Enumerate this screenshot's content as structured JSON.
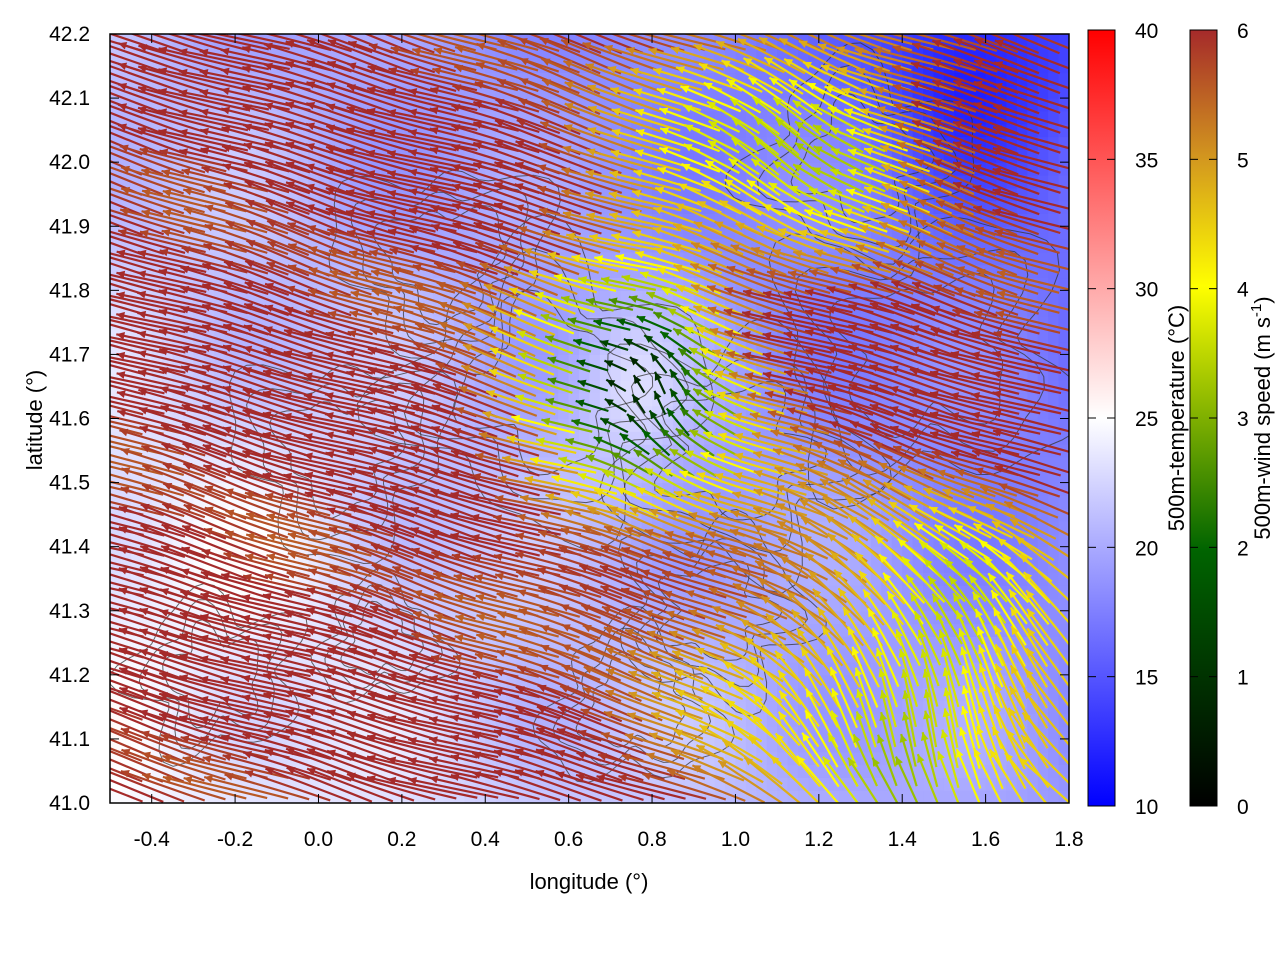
{
  "chart_data": {
    "type": "vector-field",
    "xlabel": "longitude (°)",
    "ylabel": "latitude (°)",
    "xlim": [
      -0.5,
      1.8
    ],
    "ylim": [
      41.0,
      42.2
    ],
    "x_ticks": [
      "-0.4",
      "-0.2",
      "0.0",
      "0.2",
      "0.4",
      "0.6",
      "0.8",
      "1.0",
      "1.2",
      "1.4",
      "1.6",
      "1.8"
    ],
    "x_tick_values": [
      -0.4,
      -0.2,
      0.0,
      0.2,
      0.4,
      0.6,
      0.8,
      1.0,
      1.2,
      1.4,
      1.6,
      1.8
    ],
    "y_ticks": [
      "41.0",
      "41.1",
      "41.2",
      "41.3",
      "41.4",
      "41.5",
      "41.6",
      "41.7",
      "41.8",
      "41.9",
      "42.0",
      "42.1",
      "42.2"
    ],
    "y_tick_values": [
      41.0,
      41.1,
      41.2,
      41.3,
      41.4,
      41.5,
      41.6,
      41.7,
      41.8,
      41.9,
      42.0,
      42.1,
      42.2
    ],
    "temperature_colorbar": {
      "label": "500m-temperature (°C)",
      "range": [
        10,
        40
      ],
      "ticks": [
        "10",
        "15",
        "20",
        "25",
        "30",
        "35",
        "40"
      ],
      "tick_values": [
        10,
        15,
        20,
        25,
        30,
        35,
        40
      ],
      "colors": [
        "#0000ff",
        "#ffffff",
        "#ff0000"
      ]
    },
    "wind_colorbar": {
      "label_main": "500m-wind speed (m s",
      "label_sup": "-1",
      "label_end": ")",
      "range": [
        0,
        6
      ],
      "ticks": [
        "0",
        "1",
        "2",
        "3",
        "4",
        "5",
        "6"
      ],
      "tick_values": [
        0,
        1,
        2,
        3,
        4,
        5,
        6
      ],
      "colors": [
        "#000000",
        "#006400",
        "#7fb000",
        "#ffff00",
        "#d49a1e",
        "#a52a2a"
      ]
    },
    "arrow_color": "#a52a2a",
    "contour_color": "#333333"
  }
}
